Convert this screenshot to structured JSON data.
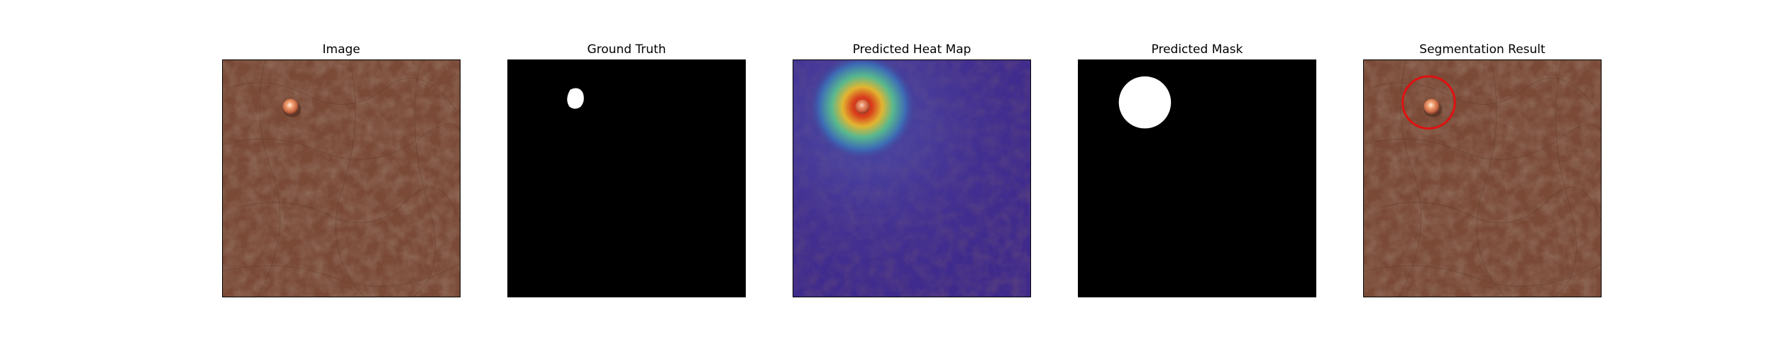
{
  "figure": {
    "panels": [
      {
        "id": "image",
        "title": "Image"
      },
      {
        "id": "ground-truth",
        "title": "Ground Truth"
      },
      {
        "id": "heat-map",
        "title": "Predicted Heat Map"
      },
      {
        "id": "mask",
        "title": "Predicted Mask"
      },
      {
        "id": "segmentation",
        "title": "Segmentation Result"
      }
    ]
  },
  "colors": {
    "leather": "#7a4a37",
    "leather_dark": "#5e3727",
    "leather_crease": "#4d2c20",
    "heatmap_base": "#3f2a8c",
    "segmentation_outline": "#e01010",
    "mask_background": "#000000",
    "mask_foreground": "#ffffff"
  }
}
